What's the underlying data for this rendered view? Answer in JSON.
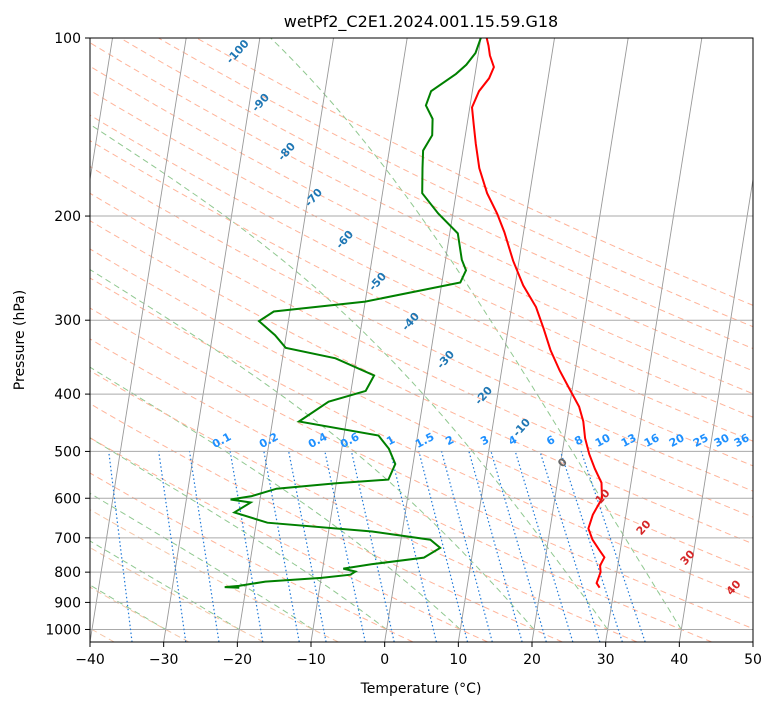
{
  "chart_data": {
    "type": "line",
    "subtype": "skew-t log-p sounding",
    "title": "wetPf2_C2E1.2024.001.15.59.G18",
    "xlabel": "Temperature (°C)",
    "ylabel": "Pressure (hPa)",
    "xlim": [
      -40,
      50
    ],
    "ylim": [
      1050,
      100
    ],
    "y_scale": "log",
    "grid": true,
    "x_ticks": [
      -40,
      -30,
      -20,
      -10,
      0,
      10,
      20,
      30,
      40,
      50
    ],
    "y_ticks": [
      100,
      200,
      300,
      400,
      500,
      600,
      700,
      800,
      900,
      1000
    ],
    "series": [
      {
        "color": "#ff0000",
        "points": [
          [
            28,
            850
          ],
          [
            27.5,
            835
          ],
          [
            27.8,
            800
          ],
          [
            27.6,
            780
          ],
          [
            28,
            755
          ],
          [
            27.2,
            735
          ],
          [
            26,
            705
          ],
          [
            25.2,
            675
          ],
          [
            25.5,
            640
          ],
          [
            26.4,
            600
          ],
          [
            26,
            565
          ],
          [
            24.8,
            535
          ],
          [
            23.7,
            505
          ],
          [
            22.8,
            475
          ],
          [
            22.2,
            445
          ],
          [
            21.3,
            420
          ],
          [
            19.5,
            390
          ],
          [
            17.9,
            365
          ],
          [
            16.2,
            337
          ],
          [
            14.8,
            310
          ],
          [
            13.3,
            285
          ],
          [
            11.1,
            262
          ],
          [
            9.2,
            238
          ],
          [
            7.4,
            213
          ],
          [
            6,
            198
          ],
          [
            4.2,
            183
          ],
          [
            2.6,
            166
          ],
          [
            1.6,
            151
          ],
          [
            0.9,
            140
          ],
          [
            0.3,
            131
          ],
          [
            0.9,
            123
          ],
          [
            2,
            117
          ],
          [
            2.4,
            112
          ],
          [
            1.6,
            107
          ],
          [
            1.2,
            103
          ],
          [
            0.8,
            100
          ]
        ]
      },
      {
        "color": "#008000",
        "points": [
          [
            -20.9,
            850
          ],
          [
            -22.9,
            848
          ],
          [
            -21,
            844
          ],
          [
            -17.5,
            830
          ],
          [
            -10,
            818
          ],
          [
            -6.1,
            808
          ],
          [
            -5.5,
            798
          ],
          [
            -7.2,
            789
          ],
          [
            -3.5,
            776
          ],
          [
            3.5,
            756
          ],
          [
            5.5,
            728
          ],
          [
            4,
            705
          ],
          [
            -4.1,
            683
          ],
          [
            -18.5,
            660
          ],
          [
            -23.2,
            634
          ],
          [
            -21.2,
            610
          ],
          [
            -24,
            603
          ],
          [
            -21.2,
            595
          ],
          [
            -18,
            578
          ],
          [
            -10,
            566
          ],
          [
            -3,
            558
          ],
          [
            -2.4,
            525
          ],
          [
            -3.6,
            495
          ],
          [
            -5.3,
            470
          ],
          [
            -16.4,
            445
          ],
          [
            -12.8,
            412
          ],
          [
            -8,
            395
          ],
          [
            -7.2,
            372
          ],
          [
            -12.8,
            348
          ],
          [
            -19.8,
            334
          ],
          [
            -21.5,
            318
          ],
          [
            -24,
            301
          ],
          [
            -22.2,
            290
          ],
          [
            -10,
            279
          ],
          [
            2.5,
            259
          ],
          [
            3,
            247
          ],
          [
            2.2,
            237
          ],
          [
            1.1,
            214
          ],
          [
            -2,
            198
          ],
          [
            -4.6,
            183
          ],
          [
            -5.1,
            166
          ],
          [
            -5.4,
            155
          ],
          [
            -4.5,
            146
          ],
          [
            -4.8,
            137
          ],
          [
            -6,
            130
          ],
          [
            -5.6,
            123
          ],
          [
            -2.6,
            115
          ],
          [
            -1.4,
            111
          ],
          [
            -0.4,
            106
          ],
          [
            0,
            100
          ]
        ]
      }
    ],
    "dry_adiabat_labels": [
      "-100",
      "-90",
      "-80",
      "-70",
      "-60",
      "-50",
      "-40",
      "-30",
      "-20",
      "-10",
      "0",
      "10",
      "20",
      "30",
      "40"
    ],
    "mixing_ratio_labels": [
      "0.1",
      "0.2",
      "0.4",
      "0.6",
      "1",
      "1.5",
      "2",
      "3",
      "4",
      "6",
      "8",
      "10",
      "13",
      "16",
      "20",
      "25",
      "30",
      "36"
    ],
    "overlay_colors": {
      "temperature": "#ff0000",
      "dewpoint": "#008000",
      "isotherms": "#999999",
      "dry_adiabats": "#ff8c69",
      "moist_adiabats": "#90c890",
      "mixing_ratio": "#1e78d8",
      "adiabat_label_cold": "#1f77b4",
      "adiabat_label_warm": "#d62728",
      "mixing_label": "#1e90ff"
    }
  }
}
